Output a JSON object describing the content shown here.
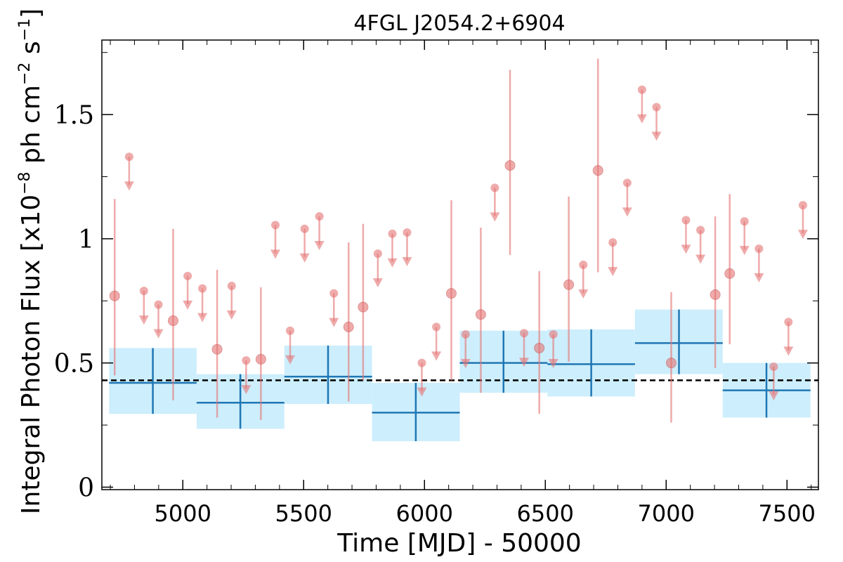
{
  "chart_data": {
    "type": "scatter",
    "title": "4FGL J2054.2+6904",
    "xlabel": "Time [MJD] - 50000",
    "ylabel": {
      "prefix": "Integral Photon Flux [x10",
      "exp1": "−8",
      "mid1": " ph cm",
      "exp2": "−2",
      "mid2": " s",
      "exp3": "−1",
      "suffix": "]"
    },
    "xlim": [
      4665,
      7630
    ],
    "ylim": [
      -0.01,
      1.8
    ],
    "x_ticks": [
      {
        "value": 5000,
        "label": "5000"
      },
      {
        "value": 5500,
        "label": "5500"
      },
      {
        "value": 6000,
        "label": "6000"
      },
      {
        "value": 6500,
        "label": "6500"
      },
      {
        "value": 7000,
        "label": "7000"
      },
      {
        "value": 7500,
        "label": "7500"
      }
    ],
    "y_ticks": [
      {
        "value": 0,
        "label": "0"
      },
      {
        "value": 0.5,
        "label": "0.5"
      },
      {
        "value": 1,
        "label": "1"
      },
      {
        "value": 1.5,
        "label": "1.5"
      }
    ],
    "mean_flux": 0.43,
    "colors": {
      "short_bins": "#e57373",
      "long_bins": "#1f77b4",
      "long_band": "#cdeefc",
      "mean_line": "#000000"
    },
    "long_bins": [
      {
        "x0": 4695,
        "x1": 5057,
        "y": 0.42,
        "lo": 0.295,
        "hi": 0.56,
        "xc": 4876
      },
      {
        "x0": 5057,
        "x1": 5420,
        "y": 0.34,
        "lo": 0.235,
        "hi": 0.455,
        "xc": 5238
      },
      {
        "x0": 5420,
        "x1": 5783,
        "y": 0.445,
        "lo": 0.335,
        "hi": 0.57,
        "xc": 5601
      },
      {
        "x0": 5783,
        "x1": 6146,
        "y": 0.3,
        "lo": 0.185,
        "hi": 0.42,
        "xc": 5964
      },
      {
        "x0": 6146,
        "x1": 6509,
        "y": 0.5,
        "lo": 0.38,
        "hi": 0.63,
        "xc": 6327
      },
      {
        "x0": 6509,
        "x1": 6871,
        "y": 0.495,
        "lo": 0.365,
        "hi": 0.635,
        "xc": 6690
      },
      {
        "x0": 6871,
        "x1": 7234,
        "y": 0.58,
        "lo": 0.455,
        "hi": 0.715,
        "xc": 7053
      },
      {
        "x0": 7234,
        "x1": 7597,
        "y": 0.39,
        "lo": 0.28,
        "hi": 0.5,
        "xc": 7415
      }
    ],
    "detections": [
      {
        "x": 4718,
        "y": 0.77,
        "lo": 0.45,
        "hi": 1.16
      },
      {
        "x": 4960,
        "y": 0.67,
        "lo": 0.35,
        "hi": 1.04
      },
      {
        "x": 5142,
        "y": 0.555,
        "lo": 0.28,
        "hi": 0.875
      },
      {
        "x": 5323,
        "y": 0.515,
        "lo": 0.27,
        "hi": 0.805
      },
      {
        "x": 5686,
        "y": 0.645,
        "lo": 0.345,
        "hi": 0.985
      },
      {
        "x": 5746,
        "y": 0.725,
        "lo": 0.43,
        "hi": 1.06
      },
      {
        "x": 6111,
        "y": 0.78,
        "lo": 0.43,
        "hi": 1.155
      },
      {
        "x": 6233,
        "y": 0.695,
        "lo": 0.38,
        "hi": 1.045
      },
      {
        "x": 6354,
        "y": 1.295,
        "lo": 0.935,
        "hi": 1.68
      },
      {
        "x": 6475,
        "y": 0.56,
        "lo": 0.295,
        "hi": 0.87
      },
      {
        "x": 6597,
        "y": 0.815,
        "lo": 0.505,
        "hi": 1.17
      },
      {
        "x": 6718,
        "y": 1.275,
        "lo": 0.865,
        "hi": 1.725
      },
      {
        "x": 7021,
        "y": 0.5,
        "lo": 0.26,
        "hi": 0.785
      },
      {
        "x": 7203,
        "y": 0.775,
        "lo": 0.48,
        "hi": 1.09
      },
      {
        "x": 7263,
        "y": 0.86,
        "lo": 0.575,
        "hi": 1.18
      }
    ],
    "upper_limits": [
      {
        "x": 4778,
        "y": 1.33
      },
      {
        "x": 4839,
        "y": 0.79
      },
      {
        "x": 4899,
        "y": 0.735
      },
      {
        "x": 5020,
        "y": 0.85
      },
      {
        "x": 5081,
        "y": 0.8
      },
      {
        "x": 5202,
        "y": 0.81
      },
      {
        "x": 5262,
        "y": 0.51
      },
      {
        "x": 5383,
        "y": 1.055
      },
      {
        "x": 5444,
        "y": 0.63
      },
      {
        "x": 5504,
        "y": 1.04
      },
      {
        "x": 5565,
        "y": 1.09
      },
      {
        "x": 5625,
        "y": 0.78
      },
      {
        "x": 5807,
        "y": 0.94
      },
      {
        "x": 5867,
        "y": 1.02
      },
      {
        "x": 5928,
        "y": 1.025
      },
      {
        "x": 5989,
        "y": 0.5
      },
      {
        "x": 6049,
        "y": 0.645
      },
      {
        "x": 6170,
        "y": 0.615
      },
      {
        "x": 6291,
        "y": 1.205
      },
      {
        "x": 6412,
        "y": 0.62
      },
      {
        "x": 6533,
        "y": 0.615
      },
      {
        "x": 6657,
        "y": 0.895
      },
      {
        "x": 6779,
        "y": 0.985
      },
      {
        "x": 6839,
        "y": 1.225
      },
      {
        "x": 6900,
        "y": 1.6
      },
      {
        "x": 6960,
        "y": 1.53
      },
      {
        "x": 7082,
        "y": 1.075
      },
      {
        "x": 7142,
        "y": 1.035
      },
      {
        "x": 7324,
        "y": 1.07
      },
      {
        "x": 7384,
        "y": 0.96
      },
      {
        "x": 7445,
        "y": 0.485
      },
      {
        "x": 7506,
        "y": 0.665
      },
      {
        "x": 7566,
        "y": 1.135
      }
    ]
  }
}
